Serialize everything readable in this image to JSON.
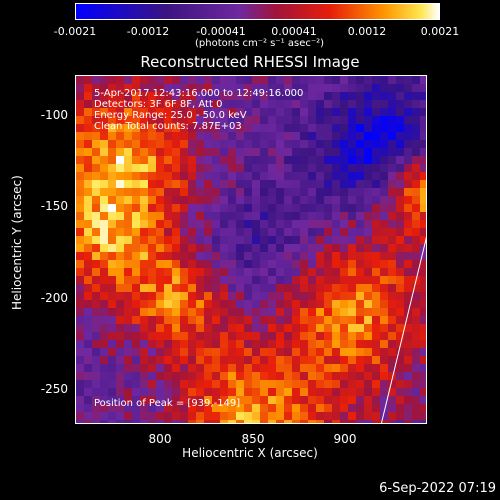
{
  "colorbar": {
    "ticks": [
      "-0.0021",
      "-0.0012",
      "-0.00041",
      "0.00041",
      "0.0012",
      "0.0021"
    ],
    "units": "(photons cm⁻² s⁻¹ asec⁻²)"
  },
  "title": "Reconstructed RHESSI Image",
  "annotations": {
    "time": "5-Apr-2017 12:43:16.000 to 12:49:16.000",
    "detectors": "Detectors: 3F 6F 8F, Att 0",
    "energy": "Energy Range: 25.0 - 50.0 keV",
    "clean": "Clean      Total counts: 7.87E+03",
    "peak": "Position of Peak = [939,-149]"
  },
  "axes": {
    "xlabel": "Heliocentric X (arcsec)",
    "ylabel": "Heliocentric Y (arcsec)",
    "xticks": [
      "800",
      "850",
      "900"
    ],
    "yticks": [
      "-100",
      "-150",
      "-200",
      "-250"
    ]
  },
  "date": "6-Sep-2022 07:19"
}
